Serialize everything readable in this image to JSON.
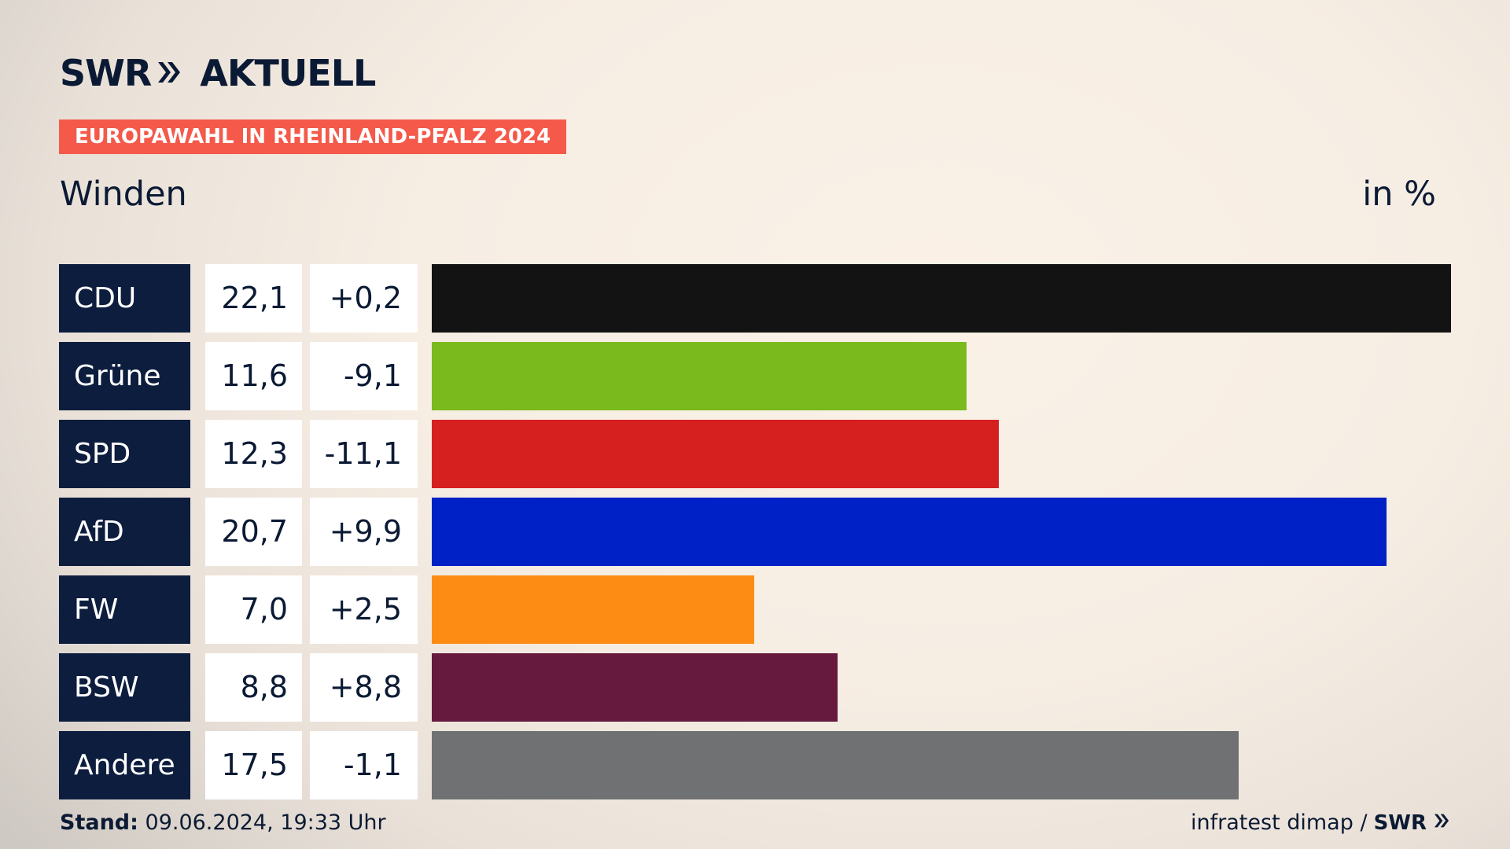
{
  "brand": {
    "name": "SWR",
    "product": "AKTUELL"
  },
  "tag": "EUROPAWAHL IN RHEINLAND-PFALZ 2024",
  "subtitle": "Winden",
  "unit": "in %",
  "colors": {
    "navy": "#0d1d3e",
    "tag": "#f4594a"
  },
  "chart_data": {
    "type": "bar",
    "orientation": "horizontal",
    "title": "Winden",
    "unit": "in %",
    "categories": [
      "CDU",
      "Grüne",
      "SPD",
      "AfD",
      "FW",
      "BSW",
      "Andere"
    ],
    "values": [
      22.1,
      11.6,
      12.3,
      20.7,
      7.0,
      8.8,
      17.5
    ],
    "value_labels": [
      "22,1",
      "11,6",
      "12,3",
      "20,7",
      "7,0",
      "8,8",
      "17,5"
    ],
    "changes": [
      0.2,
      -9.1,
      -11.1,
      9.9,
      2.5,
      8.8,
      -1.1
    ],
    "change_labels": [
      "+0,2",
      "-9,1",
      "-11,1",
      "+9,9",
      "+2,5",
      "+8,8",
      "-1,1"
    ],
    "colors": [
      "#131313",
      "#7aba1c",
      "#d62020",
      "#0021c5",
      "#fd8c15",
      "#661a3e",
      "#707172"
    ],
    "xlim": [
      0,
      22.1
    ],
    "grid": false,
    "legend": "none"
  },
  "footer": {
    "stand_label": "Stand:",
    "stand_value": "09.06.2024, 19:33 Uhr",
    "source": "infratest dimap /",
    "source_logo": "SWR"
  }
}
